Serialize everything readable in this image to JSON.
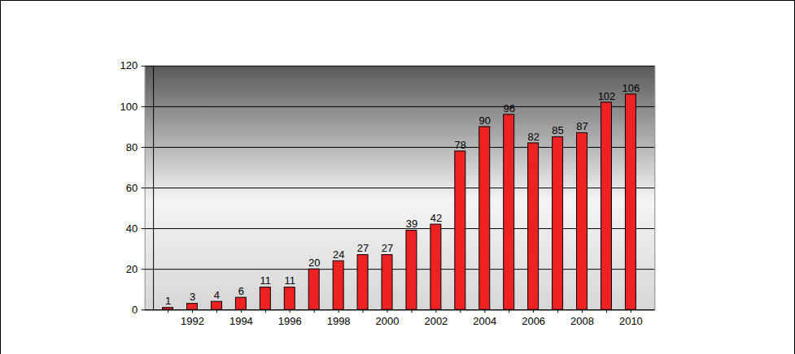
{
  "chart_data": {
    "type": "bar",
    "categories": [
      null,
      "1992",
      null,
      "1994",
      null,
      "1996",
      null,
      "1998",
      null,
      "2000",
      null,
      "2002",
      null,
      "2004",
      null,
      "2006",
      null,
      "2008",
      null,
      "2010"
    ],
    "values": [
      1,
      3,
      4,
      6,
      11,
      11,
      20,
      24,
      27,
      27,
      39,
      42,
      78,
      90,
      96,
      82,
      85,
      87,
      102,
      106
    ],
    "color": "#ee2222",
    "ylim": [
      0,
      120
    ],
    "yticks": [
      0,
      20,
      40,
      60,
      80,
      100,
      120
    ],
    "grid": true,
    "data_labels": true
  }
}
